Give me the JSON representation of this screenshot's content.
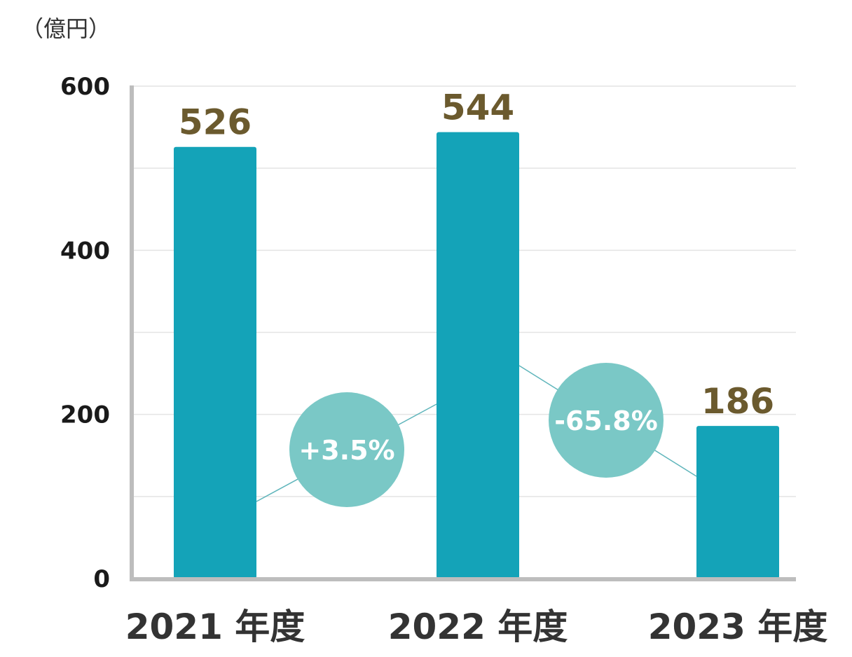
{
  "chart_data": {
    "type": "bar",
    "unit_label": "（億円）",
    "categories": [
      "2021 年度",
      "2022 年度",
      "2023 年度"
    ],
    "values": [
      526,
      544,
      186
    ],
    "ylim": [
      0,
      600
    ],
    "y_ticks": [
      0,
      200,
      400,
      600
    ],
    "y_tick_labels": [
      "0",
      "200",
      "400",
      "600"
    ],
    "value_labels": [
      "526",
      "544",
      "186"
    ],
    "growth": [
      {
        "label": "+3.5%"
      },
      {
        "label": "-65.8%"
      }
    ],
    "grid": true,
    "colors": {
      "bar": "#14a3b8",
      "value_label": "#6b5a2e",
      "growth_bubble": "#7ac8c6",
      "connector": "#5fb5bb",
      "grid": "#e4e4e4",
      "axis": "#bdbdbd"
    }
  }
}
